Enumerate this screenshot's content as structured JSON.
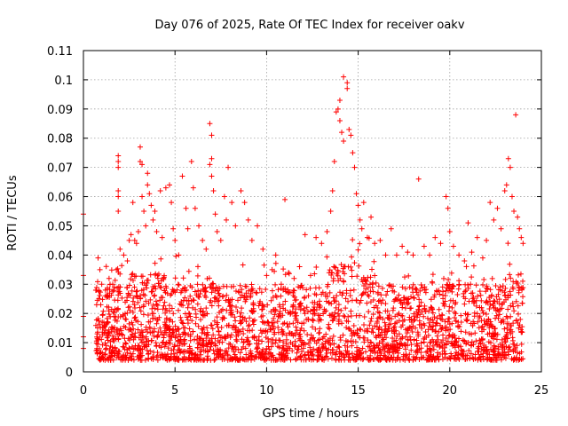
{
  "chart_data": {
    "type": "scatter",
    "title": "Day 076 of 2025, Rate Of TEC Index for receiver oakv",
    "xlabel": "GPS time / hours",
    "ylabel": "ROTI / TECUs",
    "xlim": [
      0,
      25
    ],
    "ylim": [
      0,
      0.11
    ],
    "xticks": [
      0,
      5,
      10,
      15,
      20,
      25
    ],
    "xtick_labels": [
      "0",
      "5",
      "10",
      "15",
      "20",
      "25"
    ],
    "yticks": [
      0,
      0.01,
      0.02,
      0.03,
      0.04,
      0.05,
      0.06,
      0.07,
      0.08,
      0.09,
      0.1,
      0.11
    ],
    "ytick_labels": [
      "0",
      "0.01",
      "0.02",
      "0.03",
      "0.04",
      "0.05",
      "0.06",
      "0.07",
      "0.08",
      "0.09",
      "0.1",
      "0.11"
    ],
    "grid": true,
    "marker": "plus",
    "marker_color": "#ff0000",
    "series": [
      {
        "name": "ROTI",
        "note": "dense plus-marker cloud, approx. 0.004-0.03 TECU/s baseline from ~0.6 h to 24 h; representative sample points below",
        "points": [
          [
            0.0,
            0.054
          ],
          [
            0.0,
            0.033
          ],
          [
            0.0,
            0.019
          ],
          [
            0.0,
            0.012
          ],
          [
            0.0,
            0.008
          ],
          [
            0.7,
            0.028
          ],
          [
            0.8,
            0.039
          ],
          [
            0.9,
            0.035
          ],
          [
            1.0,
            0.03
          ],
          [
            1.2,
            0.028
          ],
          [
            1.4,
            0.032
          ],
          [
            1.6,
            0.03
          ],
          [
            1.8,
            0.035
          ],
          [
            1.9,
            0.074
          ],
          [
            1.9,
            0.072
          ],
          [
            1.9,
            0.07
          ],
          [
            1.9,
            0.062
          ],
          [
            1.9,
            0.06
          ],
          [
            1.9,
            0.055
          ],
          [
            2.0,
            0.042
          ],
          [
            2.2,
            0.04
          ],
          [
            2.4,
            0.038
          ],
          [
            2.5,
            0.045
          ],
          [
            2.6,
            0.047
          ],
          [
            2.7,
            0.058
          ],
          [
            2.8,
            0.045
          ],
          [
            2.9,
            0.044
          ],
          [
            3.0,
            0.048
          ],
          [
            3.1,
            0.072
          ],
          [
            3.2,
            0.071
          ],
          [
            3.1,
            0.077
          ],
          [
            3.2,
            0.06
          ],
          [
            3.3,
            0.055
          ],
          [
            3.4,
            0.05
          ],
          [
            3.5,
            0.068
          ],
          [
            3.5,
            0.064
          ],
          [
            3.6,
            0.061
          ],
          [
            3.7,
            0.057
          ],
          [
            3.8,
            0.052
          ],
          [
            3.9,
            0.055
          ],
          [
            4.0,
            0.048
          ],
          [
            4.2,
            0.062
          ],
          [
            4.3,
            0.046
          ],
          [
            4.5,
            0.063
          ],
          [
            4.7,
            0.064
          ],
          [
            4.8,
            0.058
          ],
          [
            4.9,
            0.049
          ],
          [
            5.0,
            0.045
          ],
          [
            5.2,
            0.04
          ],
          [
            5.4,
            0.067
          ],
          [
            5.6,
            0.056
          ],
          [
            5.7,
            0.049
          ],
          [
            5.9,
            0.072
          ],
          [
            6.0,
            0.063
          ],
          [
            6.1,
            0.056
          ],
          [
            6.3,
            0.05
          ],
          [
            6.5,
            0.045
          ],
          [
            6.7,
            0.042
          ],
          [
            6.9,
            0.085
          ],
          [
            7.0,
            0.081
          ],
          [
            7.0,
            0.073
          ],
          [
            6.9,
            0.071
          ],
          [
            7.0,
            0.067
          ],
          [
            7.1,
            0.062
          ],
          [
            7.2,
            0.054
          ],
          [
            7.3,
            0.048
          ],
          [
            7.5,
            0.045
          ],
          [
            7.7,
            0.06
          ],
          [
            7.8,
            0.052
          ],
          [
            7.9,
            0.07
          ],
          [
            8.1,
            0.058
          ],
          [
            8.3,
            0.05
          ],
          [
            8.6,
            0.062
          ],
          [
            8.8,
            0.058
          ],
          [
            9.0,
            0.052
          ],
          [
            9.2,
            0.045
          ],
          [
            9.5,
            0.05
          ],
          [
            9.8,
            0.042
          ],
          [
            10.0,
            0.033
          ],
          [
            10.3,
            0.035
          ],
          [
            10.5,
            0.04
          ],
          [
            10.8,
            0.03
          ],
          [
            11.0,
            0.059
          ],
          [
            11.2,
            0.034
          ],
          [
            11.5,
            0.032
          ],
          [
            11.8,
            0.036
          ],
          [
            12.1,
            0.047
          ],
          [
            12.4,
            0.033
          ],
          [
            12.7,
            0.046
          ],
          [
            13.0,
            0.044
          ],
          [
            13.3,
            0.048
          ],
          [
            13.5,
            0.055
          ],
          [
            13.6,
            0.062
          ],
          [
            13.7,
            0.072
          ],
          [
            13.8,
            0.089
          ],
          [
            13.9,
            0.09
          ],
          [
            14.0,
            0.093
          ],
          [
            14.0,
            0.086
          ],
          [
            14.1,
            0.082
          ],
          [
            14.2,
            0.079
          ],
          [
            14.2,
            0.101
          ],
          [
            14.4,
            0.099
          ],
          [
            14.4,
            0.097
          ],
          [
            14.5,
            0.083
          ],
          [
            14.6,
            0.081
          ],
          [
            14.7,
            0.075
          ],
          [
            14.8,
            0.07
          ],
          [
            14.9,
            0.061
          ],
          [
            15.0,
            0.057
          ],
          [
            15.1,
            0.052
          ],
          [
            15.2,
            0.049
          ],
          [
            15.3,
            0.058
          ],
          [
            15.5,
            0.046
          ],
          [
            15.7,
            0.053
          ],
          [
            15.9,
            0.044
          ],
          [
            16.2,
            0.045
          ],
          [
            16.5,
            0.04
          ],
          [
            16.8,
            0.049
          ],
          [
            17.1,
            0.04
          ],
          [
            17.4,
            0.043
          ],
          [
            17.7,
            0.041
          ],
          [
            18.0,
            0.04
          ],
          [
            18.3,
            0.066
          ],
          [
            18.6,
            0.043
          ],
          [
            18.9,
            0.04
          ],
          [
            19.2,
            0.046
          ],
          [
            19.5,
            0.044
          ],
          [
            19.8,
            0.06
          ],
          [
            19.9,
            0.056
          ],
          [
            20.0,
            0.048
          ],
          [
            20.2,
            0.043
          ],
          [
            20.5,
            0.04
          ],
          [
            20.8,
            0.038
          ],
          [
            21.0,
            0.051
          ],
          [
            21.2,
            0.041
          ],
          [
            21.5,
            0.046
          ],
          [
            21.8,
            0.039
          ],
          [
            22.0,
            0.045
          ],
          [
            22.2,
            0.058
          ],
          [
            22.4,
            0.052
          ],
          [
            22.6,
            0.056
          ],
          [
            22.8,
            0.049
          ],
          [
            23.0,
            0.062
          ],
          [
            23.1,
            0.064
          ],
          [
            23.2,
            0.073
          ],
          [
            23.3,
            0.07
          ],
          [
            23.4,
            0.06
          ],
          [
            23.5,
            0.055
          ],
          [
            23.6,
            0.088
          ],
          [
            23.7,
            0.053
          ],
          [
            23.8,
            0.049
          ],
          [
            23.9,
            0.046
          ],
          [
            24.0,
            0.044
          ]
        ]
      }
    ]
  }
}
